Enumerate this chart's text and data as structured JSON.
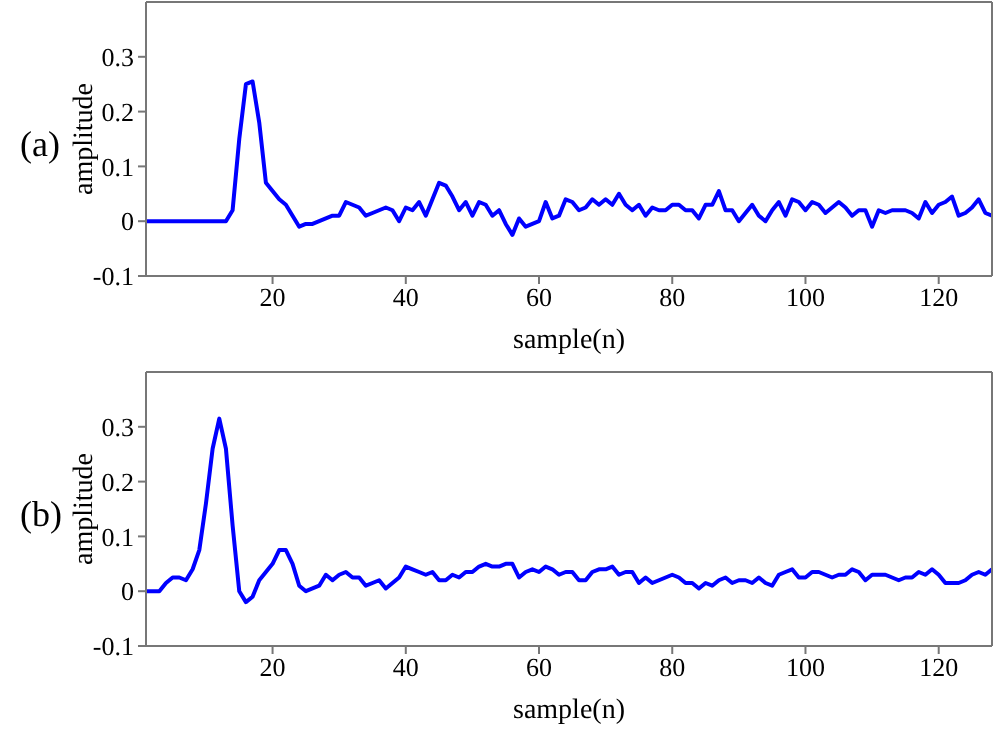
{
  "chart_data": [
    {
      "type": "line",
      "xlabel": "sample(n)",
      "ylabel": "amplitude",
      "annotations": [
        "(a)"
      ],
      "xlim": [
        1,
        128
      ],
      "xticks": [
        20,
        40,
        60,
        80,
        100,
        120
      ],
      "ylim": [
        -0.1,
        0.4
      ],
      "yticks": [
        -0.1,
        0,
        0.1,
        0.2,
        0.3
      ],
      "x": [
        1,
        2,
        3,
        4,
        5,
        6,
        7,
        8,
        9,
        10,
        11,
        12,
        13,
        14,
        15,
        16,
        17,
        18,
        19,
        20,
        21,
        22,
        23,
        24,
        25,
        26,
        27,
        28,
        29,
        30,
        31,
        32,
        33,
        34,
        35,
        36,
        37,
        38,
        39,
        40,
        41,
        42,
        43,
        44,
        45,
        46,
        47,
        48,
        49,
        50,
        51,
        52,
        53,
        54,
        55,
        56,
        57,
        58,
        59,
        60,
        61,
        62,
        63,
        64,
        65,
        66,
        67,
        68,
        69,
        70,
        71,
        72,
        73,
        74,
        75,
        76,
        77,
        78,
        79,
        80,
        81,
        82,
        83,
        84,
        85,
        86,
        87,
        88,
        89,
        90,
        91,
        92,
        93,
        94,
        95,
        96,
        97,
        98,
        99,
        100,
        101,
        102,
        103,
        104,
        105,
        106,
        107,
        108,
        109,
        110,
        111,
        112,
        113,
        114,
        115,
        116,
        117,
        118,
        119,
        120,
        121,
        122,
        123,
        124,
        125,
        126,
        127,
        128
      ],
      "series": [
        {
          "color": "#0000ff",
          "values": [
            0,
            0,
            0,
            0,
            0,
            0,
            0,
            0,
            0,
            0,
            0,
            0,
            0,
            0.02,
            0.15,
            0.25,
            0.255,
            0.18,
            0.07,
            0.055,
            0.04,
            0.03,
            0.01,
            -0.01,
            -0.005,
            -0.005,
            0,
            0.005,
            0.01,
            0.01,
            0.035,
            0.03,
            0.025,
            0.01,
            0.015,
            0.02,
            0.025,
            0.02,
            0,
            0.025,
            0.02,
            0.035,
            0.01,
            0.04,
            0.07,
            0.065,
            0.045,
            0.02,
            0.035,
            0.01,
            0.035,
            0.03,
            0.01,
            0.02,
            -0.005,
            -0.025,
            0.005,
            -0.01,
            -0.005,
            0,
            0.035,
            0.005,
            0.01,
            0.04,
            0.035,
            0.02,
            0.025,
            0.04,
            0.03,
            0.04,
            0.03,
            0.05,
            0.03,
            0.02,
            0.03,
            0.01,
            0.025,
            0.02,
            0.02,
            0.03,
            0.03,
            0.02,
            0.02,
            0.005,
            0.03,
            0.03,
            0.055,
            0.02,
            0.02,
            0,
            0.015,
            0.03,
            0.01,
            0,
            0.02,
            0.035,
            0.01,
            0.04,
            0.035,
            0.02,
            0.035,
            0.03,
            0.015,
            0.025,
            0.035,
            0.025,
            0.01,
            0.02,
            0.02,
            -0.01,
            0.02,
            0.015,
            0.02,
            0.02,
            0.02,
            0.015,
            0.005,
            0.035,
            0.015,
            0.03,
            0.035,
            0.045,
            0.01,
            0.015,
            0.025,
            0.04,
            0.015,
            0.01
          ]
        }
      ]
    },
    {
      "type": "line",
      "xlabel": "sample(n)",
      "ylabel": "amplitude",
      "annotations": [
        "(b)"
      ],
      "xlim": [
        1,
        128
      ],
      "xticks": [
        20,
        40,
        60,
        80,
        100,
        120
      ],
      "ylim": [
        -0.1,
        0.4
      ],
      "yticks": [
        -0.1,
        0,
        0.1,
        0.2,
        0.3
      ],
      "x": [
        1,
        2,
        3,
        4,
        5,
        6,
        7,
        8,
        9,
        10,
        11,
        12,
        13,
        14,
        15,
        16,
        17,
        18,
        19,
        20,
        21,
        22,
        23,
        24,
        25,
        26,
        27,
        28,
        29,
        30,
        31,
        32,
        33,
        34,
        35,
        36,
        37,
        38,
        39,
        40,
        41,
        42,
        43,
        44,
        45,
        46,
        47,
        48,
        49,
        50,
        51,
        52,
        53,
        54,
        55,
        56,
        57,
        58,
        59,
        60,
        61,
        62,
        63,
        64,
        65,
        66,
        67,
        68,
        69,
        70,
        71,
        72,
        73,
        74,
        75,
        76,
        77,
        78,
        79,
        80,
        81,
        82,
        83,
        84,
        85,
        86,
        87,
        88,
        89,
        90,
        91,
        92,
        93,
        94,
        95,
        96,
        97,
        98,
        99,
        100,
        101,
        102,
        103,
        104,
        105,
        106,
        107,
        108,
        109,
        110,
        111,
        112,
        113,
        114,
        115,
        116,
        117,
        118,
        119,
        120,
        121,
        122,
        123,
        124,
        125,
        126,
        127,
        128
      ],
      "series": [
        {
          "color": "#0000ff",
          "values": [
            0,
            0,
            0,
            0.015,
            0.025,
            0.025,
            0.02,
            0.04,
            0.075,
            0.16,
            0.26,
            0.315,
            0.26,
            0.12,
            0,
            -0.02,
            -0.01,
            0.02,
            0.035,
            0.05,
            0.075,
            0.075,
            0.05,
            0.01,
            0,
            0.005,
            0.01,
            0.03,
            0.02,
            0.03,
            0.035,
            0.025,
            0.025,
            0.01,
            0.015,
            0.02,
            0.005,
            0.015,
            0.025,
            0.045,
            0.04,
            0.035,
            0.03,
            0.035,
            0.02,
            0.02,
            0.03,
            0.025,
            0.035,
            0.035,
            0.045,
            0.05,
            0.045,
            0.045,
            0.05,
            0.05,
            0.025,
            0.035,
            0.04,
            0.035,
            0.045,
            0.04,
            0.03,
            0.035,
            0.035,
            0.02,
            0.02,
            0.035,
            0.04,
            0.04,
            0.045,
            0.03,
            0.035,
            0.035,
            0.015,
            0.025,
            0.015,
            0.02,
            0.025,
            0.03,
            0.025,
            0.015,
            0.015,
            0.005,
            0.015,
            0.01,
            0.02,
            0.025,
            0.015,
            0.02,
            0.02,
            0.015,
            0.025,
            0.015,
            0.01,
            0.03,
            0.035,
            0.04,
            0.025,
            0.025,
            0.035,
            0.035,
            0.03,
            0.025,
            0.03,
            0.03,
            0.04,
            0.035,
            0.02,
            0.03,
            0.03,
            0.03,
            0.025,
            0.02,
            0.025,
            0.025,
            0.035,
            0.03,
            0.04,
            0.03,
            0.015,
            0.015,
            0.015,
            0.02,
            0.03,
            0.035,
            0.03,
            0.04
          ]
        }
      ]
    }
  ]
}
